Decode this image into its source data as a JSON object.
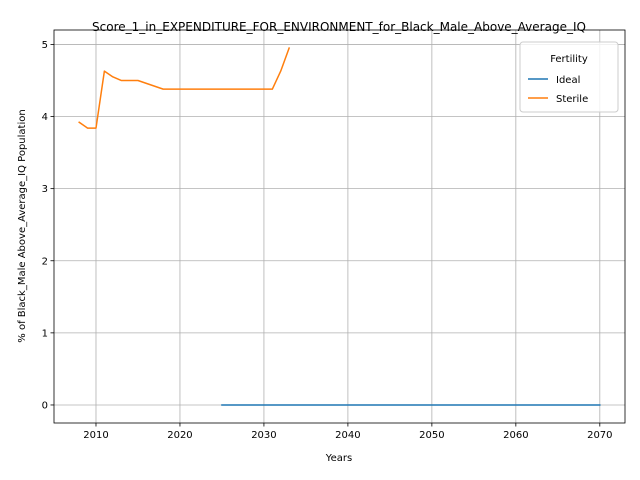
{
  "chart_data": {
    "type": "line",
    "title": "Score_1_in_EXPENDITURE_FOR_ENVIRONMENT_for_Black_Male_Above_Average_IQ",
    "xlabel": "Years",
    "ylabel": "% of Black_Male Above_Average_IQ Population",
    "xlim": [
      2005,
      2073
    ],
    "ylim": [
      -0.25,
      5.2
    ],
    "xticks": [
      2010,
      2020,
      2030,
      2040,
      2050,
      2060,
      2070
    ],
    "yticks": [
      0,
      1,
      2,
      3,
      4,
      5
    ],
    "grid": true,
    "legend": {
      "title": "Fertility",
      "placement": "top-right"
    },
    "series": [
      {
        "name": "Ideal",
        "color": "#1f77b4",
        "x": [
          2025,
          2030,
          2035,
          2040,
          2045,
          2050,
          2055,
          2060,
          2065,
          2070
        ],
        "y": [
          0,
          0,
          0,
          0,
          0,
          0,
          0,
          0,
          0,
          0
        ]
      },
      {
        "name": "Sterile",
        "color": "#ff7f0e",
        "x": [
          2008,
          2009,
          2010,
          2011,
          2012,
          2013,
          2014,
          2015,
          2016,
          2017,
          2018,
          2019,
          2020,
          2021,
          2022,
          2023,
          2024,
          2025,
          2026,
          2027,
          2028,
          2029,
          2030,
          2031,
          2032,
          2033
        ],
        "y": [
          3.92,
          3.84,
          3.84,
          4.63,
          4.55,
          4.5,
          4.5,
          4.5,
          4.46,
          4.42,
          4.38,
          4.38,
          4.38,
          4.38,
          4.38,
          4.38,
          4.38,
          4.38,
          4.38,
          4.38,
          4.38,
          4.38,
          4.38,
          4.38,
          4.63,
          4.95
        ]
      }
    ]
  }
}
